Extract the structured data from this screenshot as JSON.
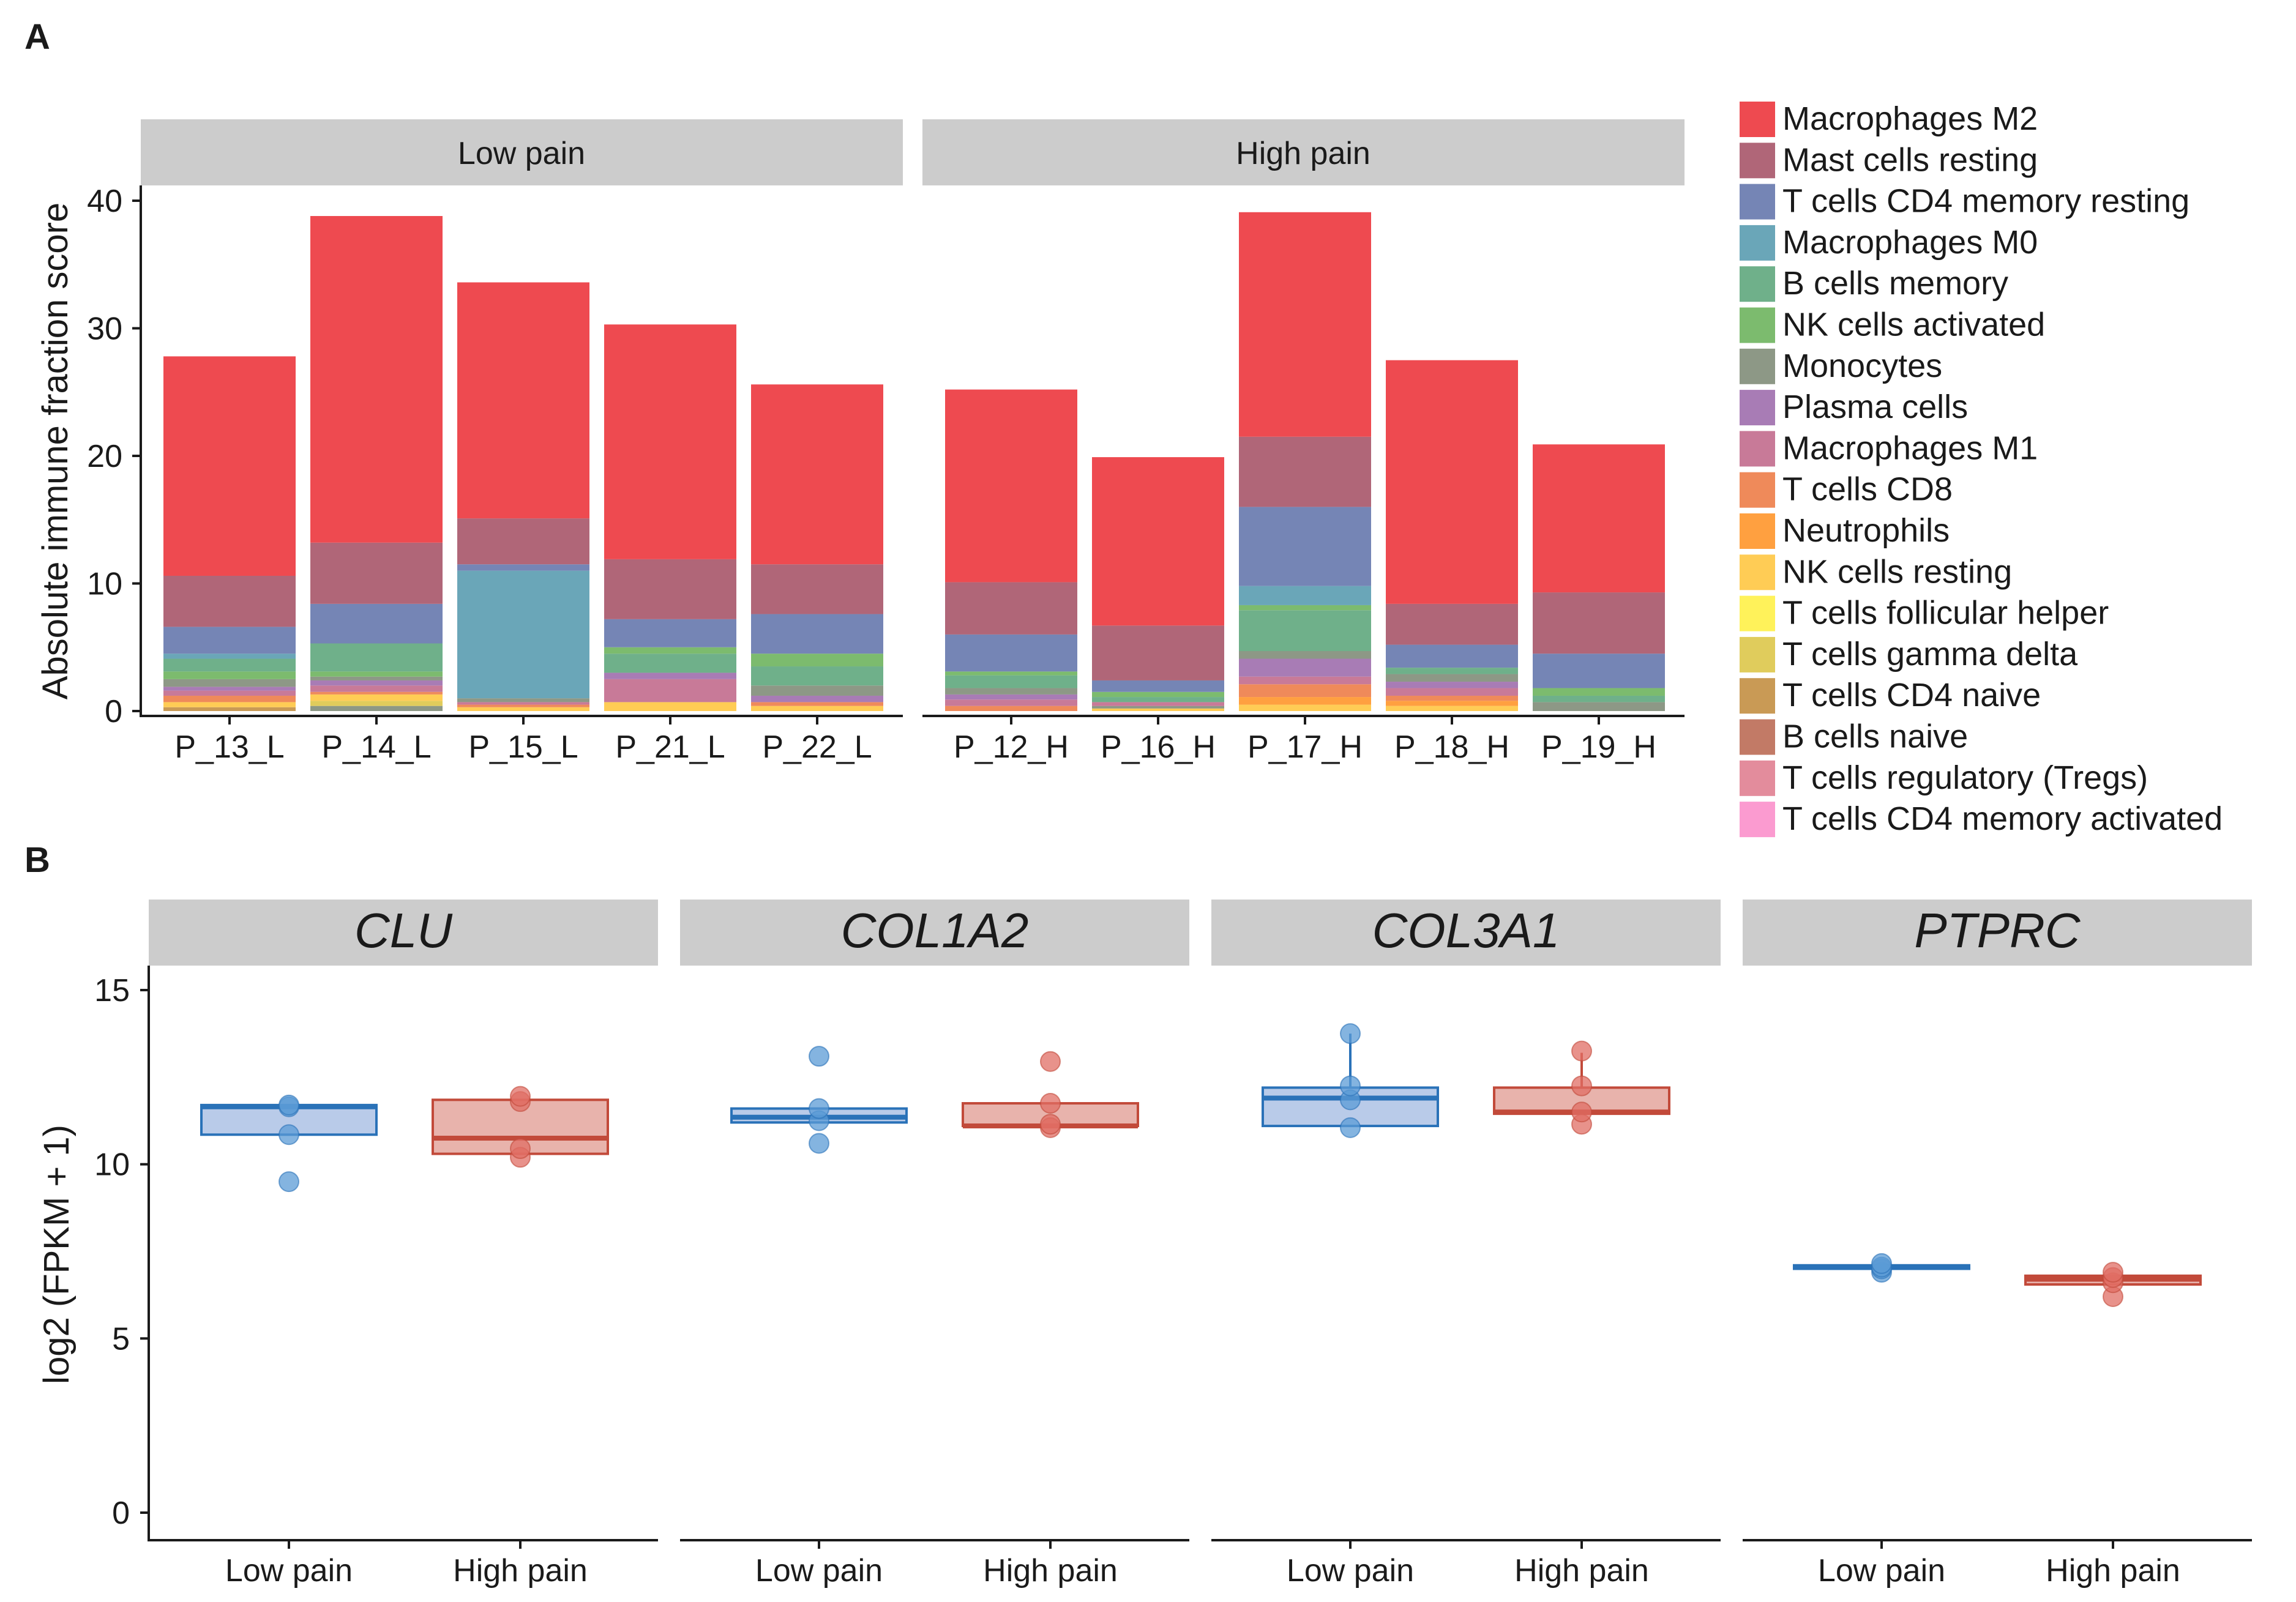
{
  "chart_data": [
    {
      "panel": "A",
      "type": "bar",
      "stacked": true,
      "ylabel": "Absolute immune fraction score",
      "xlabel": "",
      "ylim": [
        0,
        40
      ],
      "yticks": [
        0,
        10,
        20,
        30,
        40
      ],
      "grid": false,
      "legend_position": "right",
      "facets": [
        {
          "label": "Low pain",
          "categories": [
            "P_13_L",
            "P_14_L",
            "P_15_L",
            "P_21_L",
            "P_22_L"
          ]
        },
        {
          "label": "High pain",
          "categories": [
            "P_12_H",
            "P_16_H",
            "P_17_H",
            "P_18_H",
            "P_19_H"
          ]
        }
      ],
      "legend_order": [
        "Macrophages M2",
        "Mast cells resting",
        "T cells CD4 memory resting",
        "Macrophages M0",
        "B cells memory",
        "NK cells activated",
        "Monocytes",
        "Plasma cells",
        "Macrophages M1",
        "T cells CD8",
        "Neutrophils",
        "NK cells resting",
        "T cells follicular helper",
        "T cells gamma delta",
        "T cells CD4 naive",
        "B cells naive",
        "T cells regulatory (Tregs)",
        "T cells CD4 memory activated"
      ],
      "colors": {
        "Macrophages M2": "#ee4a50",
        "Mast cells resting": "#b06678",
        "T cells CD4 memory resting": "#7585b5",
        "Macrophages M0": "#6aa6b8",
        "B cells memory": "#6fb08a",
        "NK cells activated": "#7cbb6e",
        "Monocytes": "#8d9886",
        "Plasma cells": "#a87cb5",
        "Macrophages M1": "#c87a98",
        "T cells CD8": "#ef8a5a",
        "Neutrophils": "#ffa040",
        "NK cells resting": "#ffcc55",
        "T cells follicular helper": "#fff25a",
        "T cells gamma delta": "#e0cc5c",
        "T cells CD4 naive": "#c99a55",
        "B cells naive": "#c27a66",
        "T cells regulatory (Tregs)": "#e38c9c",
        "T cells CD4 memory activated": "#fb9bd0"
      },
      "stacks": {
        "P_13_L": [
          [
            "T cells CD4 naive",
            0.3
          ],
          [
            "NK cells resting",
            0.4
          ],
          [
            "T cells CD8",
            0.5
          ],
          [
            "Macrophages M1",
            0.4
          ],
          [
            "Plasma cells",
            0.3
          ],
          [
            "Monocytes",
            0.6
          ],
          [
            "NK cells activated",
            0.6
          ],
          [
            "B cells memory",
            1.0
          ],
          [
            "Macrophages M0",
            0.4
          ],
          [
            "T cells CD4 memory resting",
            2.1
          ],
          [
            "Mast cells resting",
            4.0
          ],
          [
            "Macrophages M2",
            17.2
          ]
        ],
        "P_14_L": [
          [
            "Monocytes",
            0.4
          ],
          [
            "T cells gamma delta",
            0.4
          ],
          [
            "NK cells resting",
            0.5
          ],
          [
            "T cells CD8",
            0.2
          ],
          [
            "Macrophages M1",
            0.5
          ],
          [
            "Plasma cells",
            0.4
          ],
          [
            "Monocytes",
            0.3
          ],
          [
            "NK cells activated",
            0.4
          ],
          [
            "B cells memory",
            2.2
          ],
          [
            "T cells CD4 memory resting",
            3.1
          ],
          [
            "Mast cells resting",
            4.8
          ],
          [
            "Macrophages M2",
            25.6
          ]
        ],
        "P_15_L": [
          [
            "NK cells resting",
            0.3
          ],
          [
            "T cells CD8",
            0.2
          ],
          [
            "Macrophages M1",
            0.2
          ],
          [
            "Monocytes",
            0.3
          ],
          [
            "Macrophages M0",
            10.0
          ],
          [
            "T cells CD4 memory resting",
            0.5
          ],
          [
            "Mast cells resting",
            3.6
          ],
          [
            "Macrophages M2",
            18.5
          ]
        ],
        "P_21_L": [
          [
            "NK cells resting",
            0.7
          ],
          [
            "Macrophages M1",
            1.8
          ],
          [
            "Plasma cells",
            0.5
          ],
          [
            "B cells memory",
            1.5
          ],
          [
            "NK cells activated",
            0.5
          ],
          [
            "T cells CD4 memory resting",
            2.2
          ],
          [
            "Mast cells resting",
            4.7
          ],
          [
            "Macrophages M2",
            18.4
          ]
        ],
        "P_22_L": [
          [
            "NK cells resting",
            0.4
          ],
          [
            "T cells CD8",
            0.3
          ],
          [
            "Plasma cells",
            0.5
          ],
          [
            "Monocytes",
            0.8
          ],
          [
            "B cells memory",
            1.5
          ],
          [
            "NK cells activated",
            1.0
          ],
          [
            "T cells CD4 memory resting",
            3.1
          ],
          [
            "Mast cells resting",
            3.9
          ],
          [
            "Macrophages M2",
            14.1
          ]
        ],
        "P_12_H": [
          [
            "T cells CD8",
            0.4
          ],
          [
            "Macrophages M1",
            0.5
          ],
          [
            "Plasma cells",
            0.4
          ],
          [
            "Monocytes",
            0.5
          ],
          [
            "B cells memory",
            1.0
          ],
          [
            "NK cells activated",
            0.3
          ],
          [
            "T cells CD4 memory resting",
            2.9
          ],
          [
            "Mast cells resting",
            4.1
          ],
          [
            "Macrophages M2",
            15.1
          ]
        ],
        "P_16_H": [
          [
            "NK cells resting",
            0.2
          ],
          [
            "Monocytes",
            0.2
          ],
          [
            "Macrophages M1",
            0.3
          ],
          [
            "B cells memory",
            0.4
          ],
          [
            "NK cells activated",
            0.4
          ],
          [
            "T cells CD4 memory resting",
            0.9
          ],
          [
            "Mast cells resting",
            4.3
          ],
          [
            "Macrophages M2",
            13.2
          ]
        ],
        "P_17_H": [
          [
            "NK cells resting",
            0.5
          ],
          [
            "Neutrophils",
            0.6
          ],
          [
            "T cells CD8",
            1.0
          ],
          [
            "Macrophages M1",
            0.6
          ],
          [
            "Plasma cells",
            1.4
          ],
          [
            "Monocytes",
            0.6
          ],
          [
            "B cells memory",
            3.2
          ],
          [
            "NK cells activated",
            0.4
          ],
          [
            "Macrophages M0",
            1.5
          ],
          [
            "T cells CD4 memory resting",
            6.2
          ],
          [
            "Mast cells resting",
            5.5
          ],
          [
            "Macrophages M2",
            17.6
          ]
        ],
        "P_18_H": [
          [
            "NK cells resting",
            0.4
          ],
          [
            "Neutrophils",
            0.4
          ],
          [
            "T cells CD8",
            0.4
          ],
          [
            "Macrophages M1",
            0.6
          ],
          [
            "Plasma cells",
            0.5
          ],
          [
            "Monocytes",
            0.6
          ],
          [
            "B cells memory",
            0.5
          ],
          [
            "T cells CD4 memory resting",
            1.8
          ],
          [
            "Mast cells resting",
            3.2
          ],
          [
            "Macrophages M2",
            19.1
          ]
        ],
        "P_19_H": [
          [
            "Monocytes",
            0.7
          ],
          [
            "B cells memory",
            0.5
          ],
          [
            "NK cells activated",
            0.6
          ],
          [
            "T cells CD4 memory resting",
            2.7
          ],
          [
            "Mast cells resting",
            4.8
          ],
          [
            "Macrophages M2",
            11.6
          ]
        ]
      }
    },
    {
      "panel": "B",
      "type": "box",
      "ylabel": "log2 (FPKM + 1)",
      "xlabel": "",
      "ylim": [
        0,
        15
      ],
      "yticks": [
        0,
        5,
        10,
        15
      ],
      "grid": false,
      "group_colors": {
        "Low pain": "#2a72b8",
        "High pain": "#c24a3a"
      },
      "fill_colors": {
        "Low pain": "#b9cbe9",
        "High pain": "#e8b3ac"
      },
      "point_colors": {
        "Low pain": "#5b9bd5",
        "High pain": "#e06e64"
      },
      "facets": [
        {
          "gene": "CLU",
          "groups": [
            {
              "name": "Low pain",
              "q1": 10.85,
              "median": 11.65,
              "q3": 11.7,
              "whisker_low": 10.85,
              "whisker_high": 11.7,
              "points": [
                9.5,
                10.85,
                11.65,
                11.7
              ]
            },
            {
              "name": "High pain",
              "q1": 10.3,
              "median": 10.75,
              "q3": 11.85,
              "whisker_low": 10.3,
              "whisker_high": 11.85,
              "points": [
                10.2,
                10.45,
                11.8,
                11.95
              ]
            }
          ]
        },
        {
          "gene": "COL1A2",
          "groups": [
            {
              "name": "Low pain",
              "q1": 11.2,
              "median": 11.35,
              "q3": 11.6,
              "whisker_low": 11.2,
              "whisker_high": 11.6,
              "points": [
                10.6,
                11.25,
                11.6,
                13.1
              ]
            },
            {
              "name": "High pain",
              "q1": 11.1,
              "median": 11.1,
              "q3": 11.75,
              "whisker_low": 11.1,
              "whisker_high": 11.75,
              "points": [
                11.05,
                11.15,
                11.75,
                12.95
              ]
            }
          ]
        },
        {
          "gene": "COL3A1",
          "groups": [
            {
              "name": "Low pain",
              "q1": 11.1,
              "median": 11.9,
              "q3": 12.2,
              "whisker_low": 11.1,
              "whisker_high": 13.75,
              "points": [
                11.05,
                11.85,
                12.25,
                13.75
              ]
            },
            {
              "name": "High pain",
              "q1": 11.45,
              "median": 11.5,
              "q3": 12.2,
              "whisker_low": 11.45,
              "whisker_high": 13.2,
              "points": [
                11.15,
                11.5,
                12.25,
                13.25
              ]
            }
          ]
        },
        {
          "gene": "PTPRC",
          "groups": [
            {
              "name": "Low pain",
              "q1": 7.0,
              "median": 7.05,
              "q3": 7.1,
              "whisker_low": 7.0,
              "whisker_high": 7.1,
              "points": [
                6.9,
                7.0,
                7.05,
                7.15
              ]
            },
            {
              "name": "High pain",
              "q1": 6.55,
              "median": 6.7,
              "q3": 6.8,
              "whisker_low": 6.55,
              "whisker_high": 6.8,
              "points": [
                6.2,
                6.6,
                6.75,
                6.9
              ]
            }
          ]
        }
      ]
    }
  ]
}
